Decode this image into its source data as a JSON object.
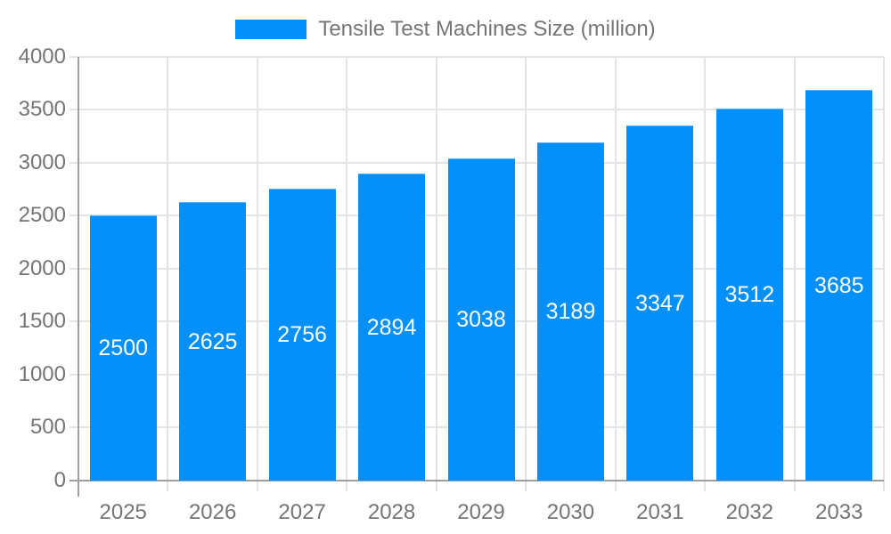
{
  "legend": {
    "label": "Tensile Test Machines Size (million)",
    "swatch_color": "#0490fa"
  },
  "chart_data": {
    "type": "bar",
    "title": "Tensile Test Machines Size (million)",
    "categories": [
      "2025",
      "2026",
      "2027",
      "2028",
      "2029",
      "2030",
      "2031",
      "2032",
      "2033"
    ],
    "series": [
      {
        "name": "Tensile Test Machines Size (million)",
        "values": [
          2500,
          2625,
          2756,
          2894,
          3038,
          3189,
          3347,
          3512,
          3685
        ]
      }
    ],
    "value_labels_shown": true,
    "xlabel": "",
    "ylabel": "",
    "ylim": [
      0,
      4000
    ],
    "yticks": [
      0,
      500,
      1000,
      1500,
      2000,
      2500,
      3000,
      3500,
      4000
    ],
    "grid": true,
    "legend_position": "top",
    "colors": {
      "bar": "#0490fa",
      "bar_edge": "#55aef7",
      "value_label": "#ffffff",
      "axis_text": "#757575",
      "grid_line": "#e4e4e4",
      "axis_line": "#9e9e9e",
      "background": "#ffffff"
    }
  }
}
